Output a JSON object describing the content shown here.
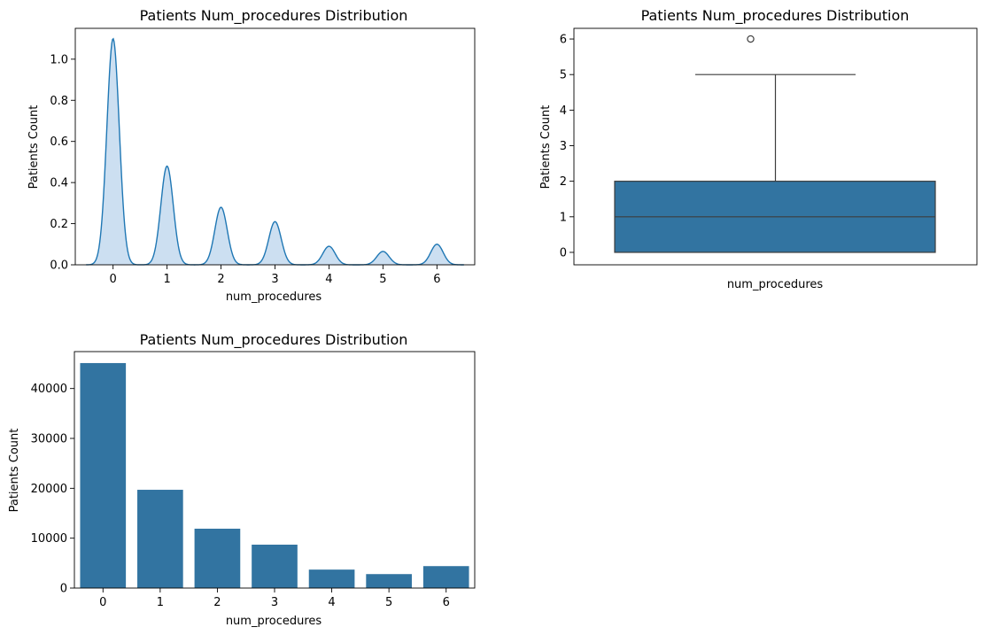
{
  "chart_data": [
    {
      "type": "area",
      "title": "Patients Num_procedures Distribution",
      "xlabel": "num_procedures",
      "ylabel": "Patients Count",
      "xlim": [
        -0.7,
        6.7
      ],
      "ylim": [
        0,
        1.15
      ],
      "x_ticks": [
        0,
        1,
        2,
        3,
        4,
        5,
        6
      ],
      "y_ticks": [
        0.0,
        0.2,
        0.4,
        0.6,
        0.8,
        1.0
      ],
      "y_tick_labels": [
        "0.0",
        "0.2",
        "0.4",
        "0.6",
        "0.8",
        "1.0"
      ],
      "peaks": [
        {
          "x": 0,
          "density": 1.1
        },
        {
          "x": 1,
          "density": 0.48
        },
        {
          "x": 2,
          "density": 0.28
        },
        {
          "x": 3,
          "density": 0.21
        },
        {
          "x": 4,
          "density": 0.09
        },
        {
          "x": 5,
          "density": 0.065
        },
        {
          "x": 6,
          "density": 0.1
        }
      ],
      "x_range": [
        -0.5,
        6.5
      ],
      "line_color": "#1f77b4",
      "fill_color": "#c6dbef",
      "grid": false
    },
    {
      "type": "box",
      "title": "Patients Num_procedures Distribution",
      "xlabel": "num_procedures",
      "ylabel": "Patients Count",
      "ylim": [
        -0.35,
        6.3
      ],
      "y_ticks": [
        0,
        1,
        2,
        3,
        4,
        5,
        6
      ],
      "y_tick_labels": [
        "0",
        "1",
        "2",
        "3",
        "4",
        "5",
        "6"
      ],
      "min": 0,
      "q1": 0,
      "median": 1,
      "q3": 2,
      "whisker_low": 0,
      "whisker_high": 5,
      "outliers": [
        6
      ],
      "color": "#3274a1",
      "grid": false
    },
    {
      "type": "bar",
      "title": "Patients Num_procedures Distribution",
      "xlabel": "num_procedures",
      "ylabel": "Patients Count",
      "categories": [
        "0",
        "1",
        "2",
        "3",
        "4",
        "5",
        "6"
      ],
      "values": [
        45100,
        19700,
        11900,
        8700,
        3700,
        2800,
        4400
      ],
      "ylim": [
        0,
        47400
      ],
      "y_ticks": [
        0,
        10000,
        20000,
        30000,
        40000
      ],
      "y_tick_labels": [
        "0",
        "10000",
        "20000",
        "30000",
        "40000"
      ],
      "color": "#3274a1",
      "grid": false
    }
  ]
}
